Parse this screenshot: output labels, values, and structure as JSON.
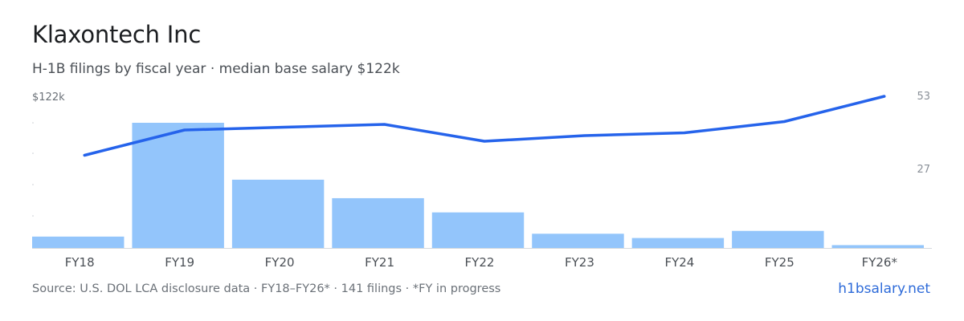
{
  "header": {
    "title": "Klaxontech Inc",
    "subtitle": "H-1B filings by fiscal year · median base salary $122k"
  },
  "footer": {
    "source": "Source: U.S. DOL LCA disclosure data · FY18–FY26* · 141 filings · *FY in progress",
    "brand": "h1bsalary.net"
  },
  "chart_data": {
    "type": "bar",
    "categories": [
      "FY18",
      "FY19",
      "FY20",
      "FY21",
      "FY22",
      "FY23",
      "FY24",
      "FY25",
      "FY26*"
    ],
    "series": [
      {
        "type": "bar",
        "axis": "left",
        "values": [
          4,
          44,
          24,
          17.5,
          12.5,
          5,
          3.5,
          6,
          1
        ],
        "color": "#93c5fb"
      },
      {
        "type": "line",
        "axis": "right",
        "values": [
          32,
          41,
          42,
          43,
          37,
          39,
          40,
          44,
          53
        ],
        "color": "#2563eb"
      }
    ],
    "left_axis": {
      "top_label": "$122k",
      "ylim": [
        0,
        44
      ]
    },
    "right_axis": {
      "tick_labels": [
        "53",
        "27"
      ],
      "ticks": [
        53,
        27
      ],
      "ylim": [
        -1,
        53
      ]
    },
    "grid": false,
    "legend": "none"
  }
}
